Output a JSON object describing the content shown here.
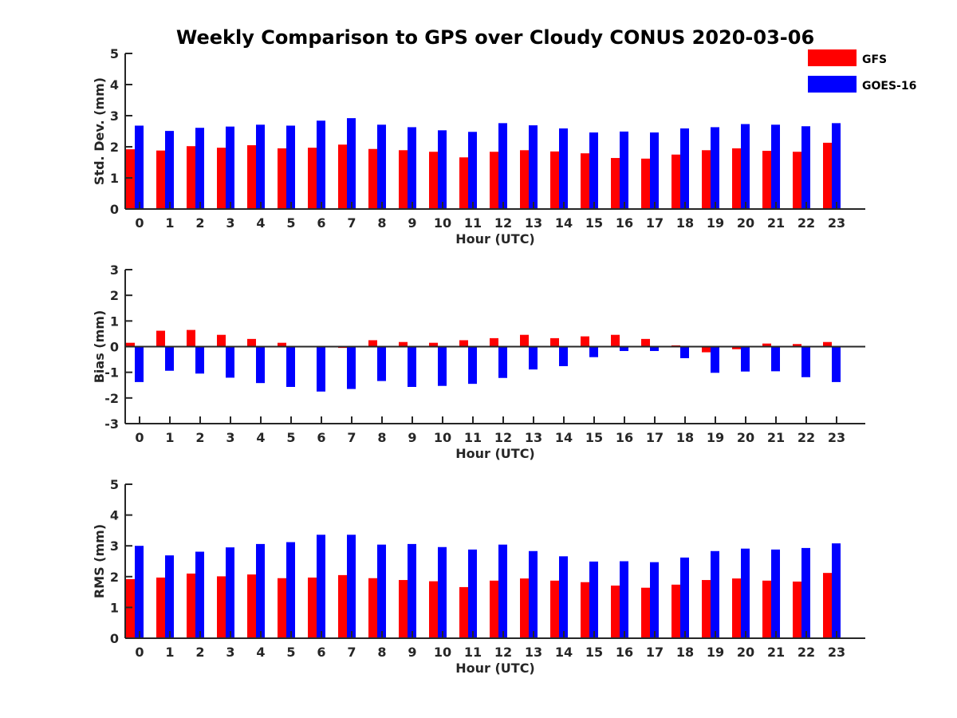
{
  "colors": {
    "GFS": "#ff0000",
    "GOES-16": "#0000ff",
    "axis": "#262626"
  },
  "chart_data": [
    {
      "type": "bar",
      "title": "Weekly Comparison to GPS over Cloudy CONUS 2020-03-06",
      "xlabel": "Hour (UTC)",
      "ylabel": "Std. Dev. (mm)",
      "ylim": [
        0,
        5
      ],
      "yticks": [
        "0",
        "1",
        "2",
        "3",
        "4",
        "5"
      ],
      "categories": [
        "0",
        "1",
        "2",
        "3",
        "4",
        "5",
        "6",
        "7",
        "8",
        "9",
        "10",
        "11",
        "12",
        "13",
        "14",
        "15",
        "16",
        "17",
        "18",
        "19",
        "20",
        "21",
        "22",
        "23"
      ],
      "legend": {
        "position": "top-right",
        "entries": [
          "GFS",
          "GOES-16"
        ]
      },
      "grid": false,
      "series": [
        {
          "name": "GFS",
          "values": [
            1.92,
            1.88,
            2.02,
            1.97,
            2.05,
            1.95,
            1.97,
            2.07,
            1.93,
            1.89,
            1.84,
            1.66,
            1.84,
            1.89,
            1.85,
            1.79,
            1.64,
            1.62,
            1.75,
            1.89,
            1.95,
            1.87,
            1.84,
            2.13
          ]
        },
        {
          "name": "GOES-16",
          "values": [
            2.68,
            2.51,
            2.61,
            2.65,
            2.71,
            2.68,
            2.84,
            2.92,
            2.71,
            2.63,
            2.53,
            2.48,
            2.76,
            2.69,
            2.59,
            2.46,
            2.49,
            2.46,
            2.59,
            2.63,
            2.73,
            2.71,
            2.66,
            2.76
          ]
        }
      ]
    },
    {
      "type": "bar",
      "xlabel": "Hour (UTC)",
      "ylabel": "Bias (mm)",
      "ylim": [
        -3,
        3
      ],
      "yticks": [
        "-3",
        "-2",
        "-1",
        "0",
        "1",
        "2",
        "3"
      ],
      "categories": [
        "0",
        "1",
        "2",
        "3",
        "4",
        "5",
        "6",
        "7",
        "8",
        "9",
        "10",
        "11",
        "12",
        "13",
        "14",
        "15",
        "16",
        "17",
        "18",
        "19",
        "20",
        "21",
        "22",
        "23"
      ],
      "grid": false,
      "series": [
        {
          "name": "GFS",
          "values": [
            0.15,
            0.62,
            0.65,
            0.46,
            0.3,
            0.15,
            -0.02,
            -0.05,
            0.25,
            0.18,
            0.15,
            0.25,
            0.33,
            0.46,
            0.33,
            0.4,
            0.46,
            0.3,
            0.05,
            -0.22,
            -0.1,
            0.12,
            0.1,
            0.18
          ]
        },
        {
          "name": "GOES-16",
          "values": [
            -1.38,
            -0.94,
            -1.05,
            -1.21,
            -1.42,
            -1.57,
            -1.75,
            -1.65,
            -1.34,
            -1.57,
            -1.53,
            -1.45,
            -1.22,
            -0.89,
            -0.76,
            -0.41,
            -0.17,
            -0.17,
            -0.45,
            -1.02,
            -0.97,
            -0.96,
            -1.19,
            -1.38
          ]
        }
      ]
    },
    {
      "type": "bar",
      "xlabel": "Hour (UTC)",
      "ylabel": "RMS (mm)",
      "ylim": [
        0,
        5
      ],
      "yticks": [
        "0",
        "1",
        "2",
        "3",
        "4",
        "5"
      ],
      "categories": [
        "0",
        "1",
        "2",
        "3",
        "4",
        "5",
        "6",
        "7",
        "8",
        "9",
        "10",
        "11",
        "12",
        "13",
        "14",
        "15",
        "16",
        "17",
        "18",
        "19",
        "20",
        "21",
        "22",
        "23"
      ],
      "grid": false,
      "series": [
        {
          "name": "GFS",
          "values": [
            1.92,
            1.97,
            2.1,
            2.01,
            2.07,
            1.95,
            1.97,
            2.05,
            1.95,
            1.89,
            1.85,
            1.66,
            1.87,
            1.94,
            1.87,
            1.82,
            1.71,
            1.64,
            1.74,
            1.89,
            1.94,
            1.87,
            1.84,
            2.12
          ]
        },
        {
          "name": "GOES-16",
          "values": [
            3.0,
            2.69,
            2.81,
            2.95,
            3.06,
            3.12,
            3.36,
            3.36,
            3.04,
            3.06,
            2.96,
            2.88,
            3.04,
            2.83,
            2.66,
            2.49,
            2.5,
            2.47,
            2.62,
            2.83,
            2.91,
            2.88,
            2.93,
            3.08
          ]
        }
      ]
    }
  ]
}
